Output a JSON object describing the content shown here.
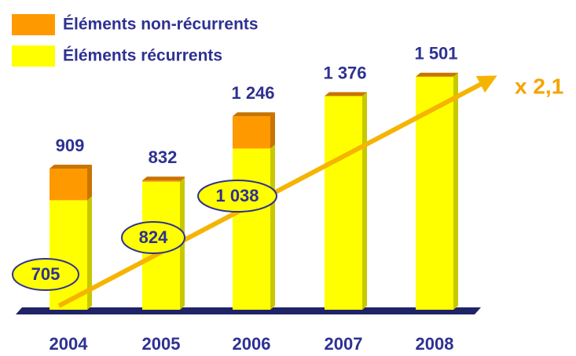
{
  "chart_data": {
    "type": "bar",
    "stacked": true,
    "categories": [
      "2004",
      "2005",
      "2006",
      "2007",
      "2008"
    ],
    "series": [
      {
        "name": "Éléments récurrents",
        "color": "#ffff00",
        "values": [
          705,
          824,
          1038,
          1376,
          1501
        ],
        "value_labels": [
          "705",
          "824",
          "1 038",
          null,
          null
        ]
      },
      {
        "name": "Éléments non-récurrents",
        "color": "#ff9900",
        "values": [
          204,
          8,
          208,
          0,
          0
        ]
      }
    ],
    "total_labels": [
      "909",
      "832",
      "1 246",
      "1 376",
      "1 501"
    ],
    "annotation": "x 2,1",
    "ylim": [
      0,
      1550
    ]
  }
}
